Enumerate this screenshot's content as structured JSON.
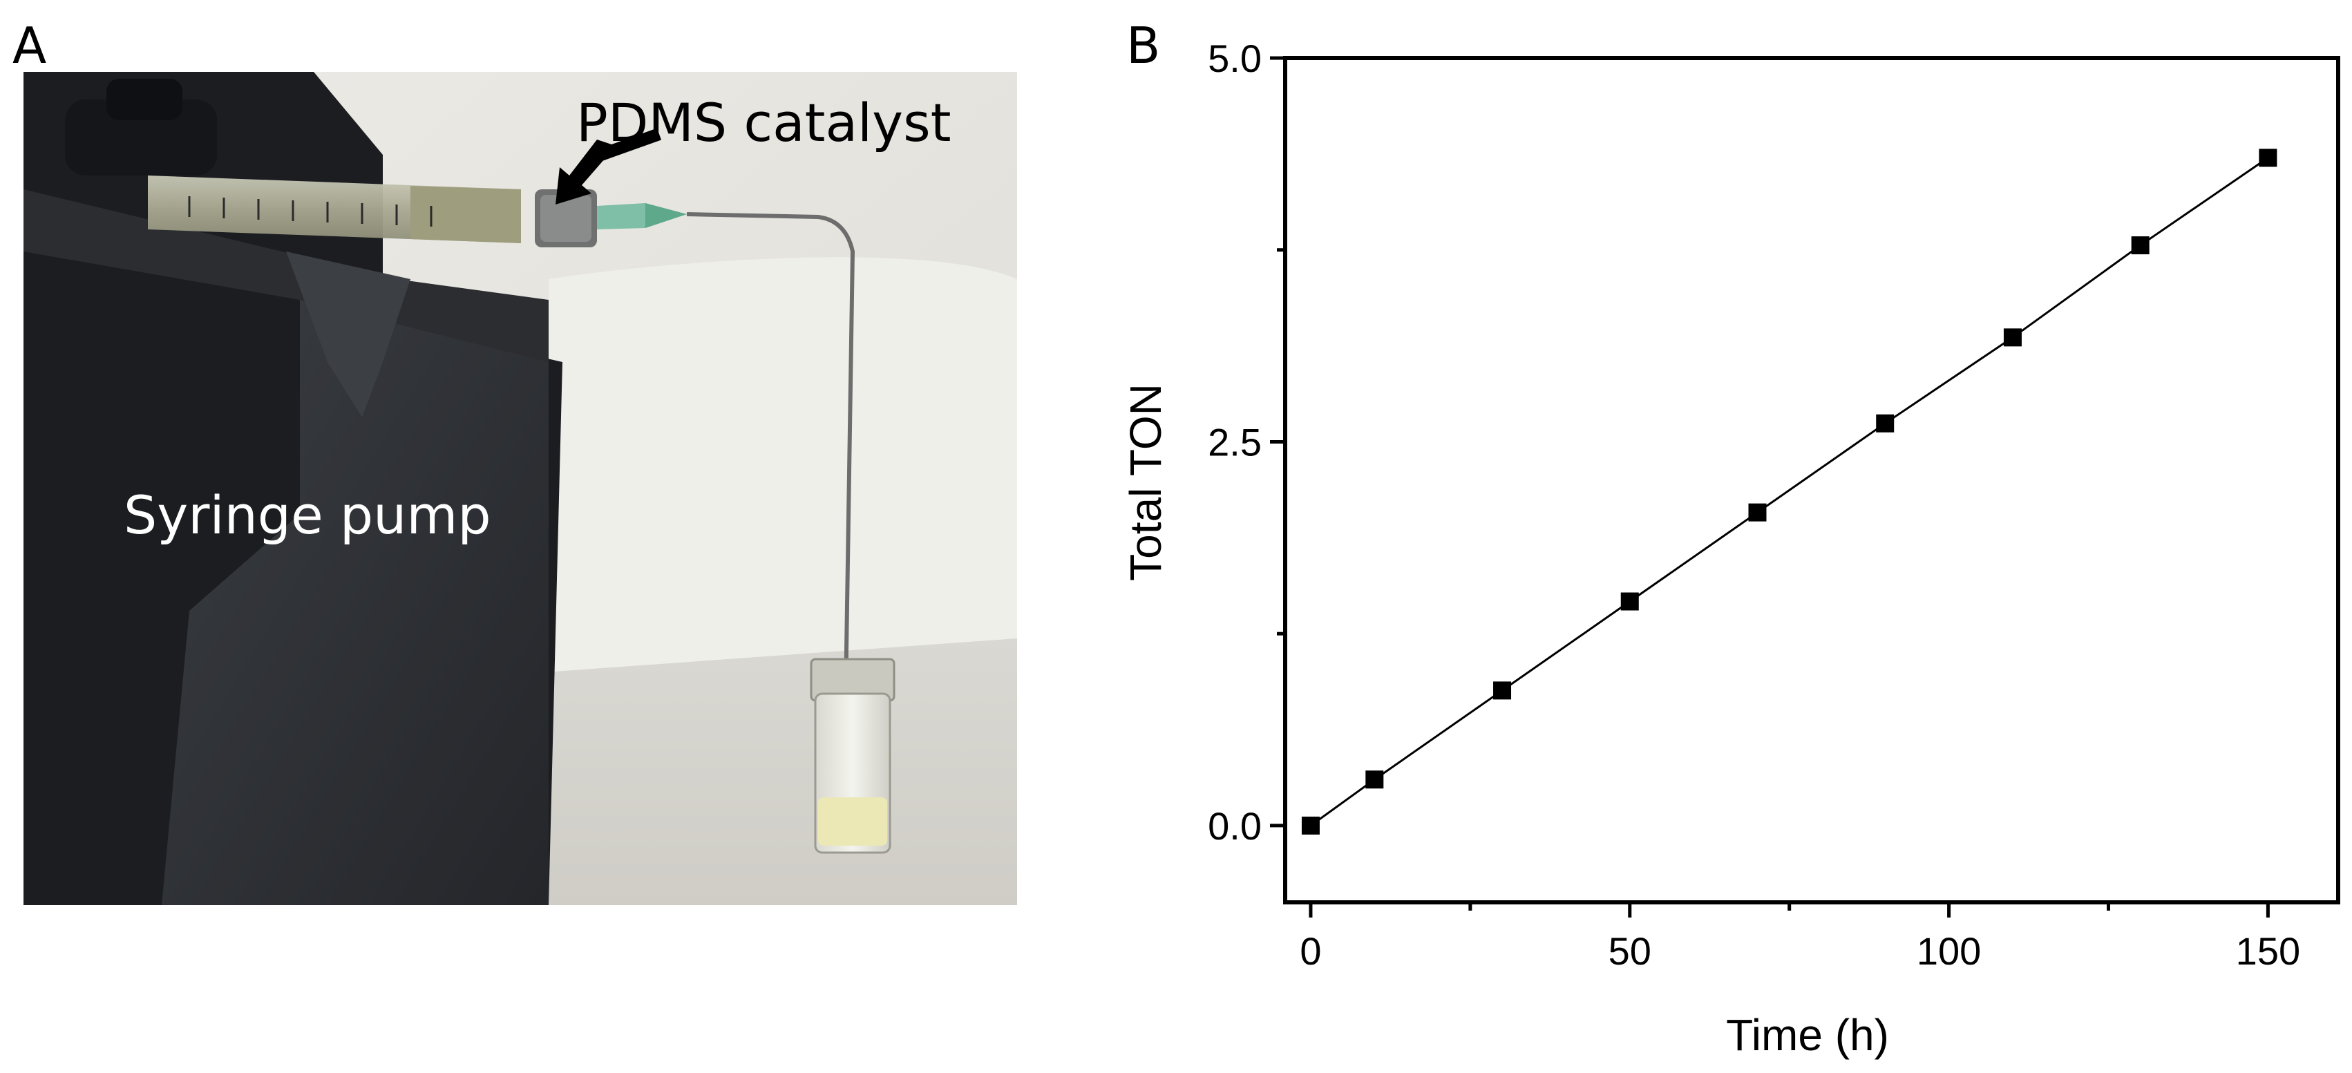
{
  "panel_a": {
    "letter": "A",
    "labels": {
      "catalyst": "PDMS catalyst",
      "pump": "Syringe pump"
    }
  },
  "panel_b": {
    "letter": "B"
  },
  "chart_data": {
    "type": "scatter",
    "title": "",
    "xlabel": "Time (h)",
    "ylabel": "Total TON",
    "xlim": [
      -4,
      161
    ],
    "ylim": [
      -0.5,
      5.0
    ],
    "x_ticks": [
      0,
      50,
      100,
      150
    ],
    "y_ticks": [
      0.0,
      2.5,
      5.0
    ],
    "x_tick_labels": [
      "0",
      "50",
      "100",
      "150"
    ],
    "y_tick_labels": [
      "0.0",
      "2.5",
      "5.0"
    ],
    "grid": false,
    "legend": "none",
    "marker": "square",
    "line": "connected",
    "color": "#000000",
    "series": [
      {
        "x": [
          0,
          10,
          30,
          50,
          70,
          90,
          110,
          130,
          150
        ],
        "y": [
          0.0,
          0.3,
          0.88,
          1.46,
          2.04,
          2.62,
          3.18,
          3.78,
          4.35
        ]
      }
    ]
  }
}
